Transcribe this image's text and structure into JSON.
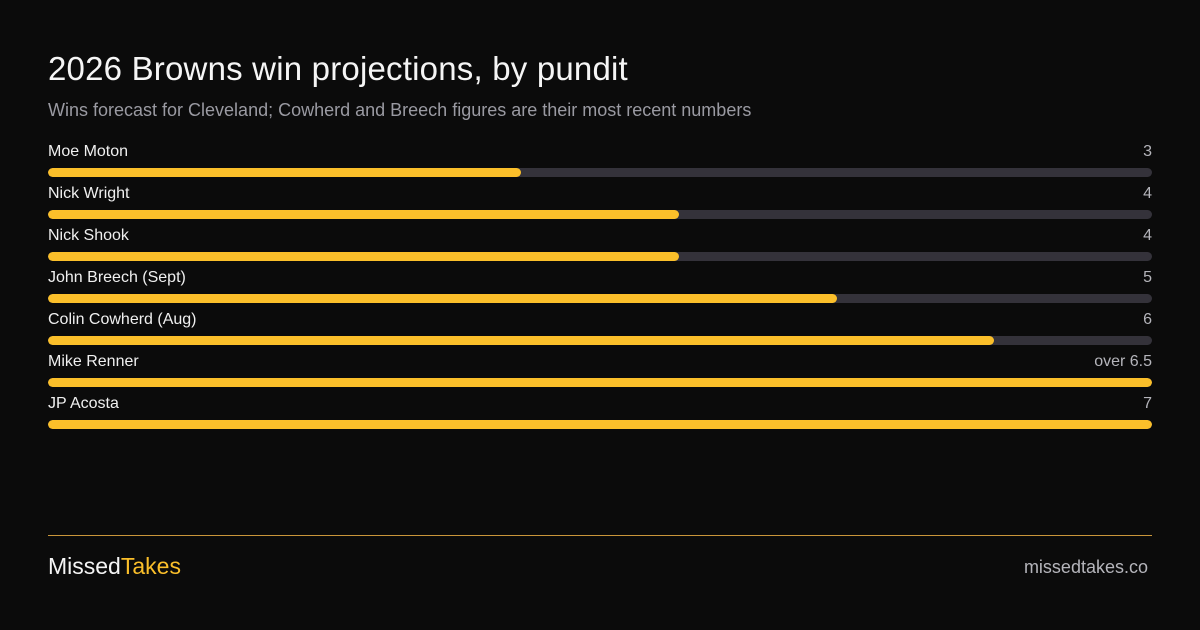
{
  "chart_data": {
    "type": "bar",
    "orientation": "horizontal",
    "title": "2026 Browns win projections, by pundit",
    "subtitle": "Wins forecast for Cleveland; Cowherd and Breech figures are their most recent numbers",
    "xlim": [
      0,
      7
    ],
    "grid": false,
    "colors": {
      "bar": "#fbbf2a",
      "track": "#34323a",
      "background": "#0b0b0b"
    },
    "rows": [
      {
        "label": "Moe Moton",
        "value": 3,
        "value_label": "3"
      },
      {
        "label": "Nick Wright",
        "value": 4,
        "value_label": "4"
      },
      {
        "label": "Nick Shook",
        "value": 4,
        "value_label": "4"
      },
      {
        "label": "John Breech (Sept)",
        "value": 5,
        "value_label": "5"
      },
      {
        "label": "Colin Cowherd (Aug)",
        "value": 6,
        "value_label": "6"
      },
      {
        "label": "Mike Renner",
        "value": 7,
        "value_label": "over 6.5"
      },
      {
        "label": "JP Acosta",
        "value": 7,
        "value_label": "7"
      }
    ]
  },
  "footer": {
    "brand_part1": "Missed",
    "brand_part2": "Takes",
    "site": "missedtakes.co"
  }
}
